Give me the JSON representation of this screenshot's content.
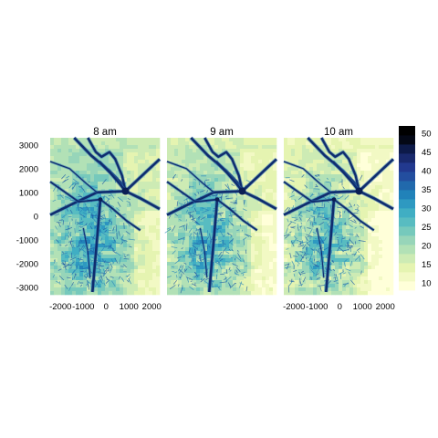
{
  "chart_data": {
    "type": "heatmap",
    "panels": [
      {
        "title": "8 am",
        "level": 0.0
      },
      {
        "title": "9 am",
        "level": 0.45
      },
      {
        "title": "10 am",
        "level": 1.0
      }
    ],
    "x_ticks": [
      -2000,
      -1000,
      0,
      1000,
      2000
    ],
    "x_tick_labels": [
      "-2000",
      "-1000",
      "0",
      "1000",
      "2000"
    ],
    "x_tick_label_panels": [
      "8 am",
      "10 am"
    ],
    "y_ticks": [
      3000,
      2000,
      1000,
      0,
      -1000,
      -2000,
      -3000
    ],
    "y_tick_labels": [
      "3000",
      "2000",
      "1000",
      "0",
      "-1000",
      "-2000",
      "-3000"
    ],
    "xlim": [
      -2450,
      2350
    ],
    "ylim": [
      -3200,
      3300
    ],
    "colorbar": {
      "ticks": [
        10,
        15,
        20,
        25,
        30,
        35,
        40,
        45,
        50
      ],
      "tick_labels": [
        "10",
        "15",
        "20",
        "25",
        "30",
        "35",
        "40",
        "45",
        "50"
      ],
      "range": [
        8,
        52
      ],
      "colors": [
        "#ffffd9",
        "#f2f9c4",
        "#e5f4b1",
        "#cdebb4",
        "#b2e1b6",
        "#97d5b9",
        "#76c9bc",
        "#58bcc1",
        "#40aec3",
        "#2e99c1",
        "#2182b9",
        "#2169ac",
        "#234e9f",
        "#22398f",
        "#19296d",
        "#0d1a49",
        "#040816",
        "#000000"
      ]
    }
  }
}
